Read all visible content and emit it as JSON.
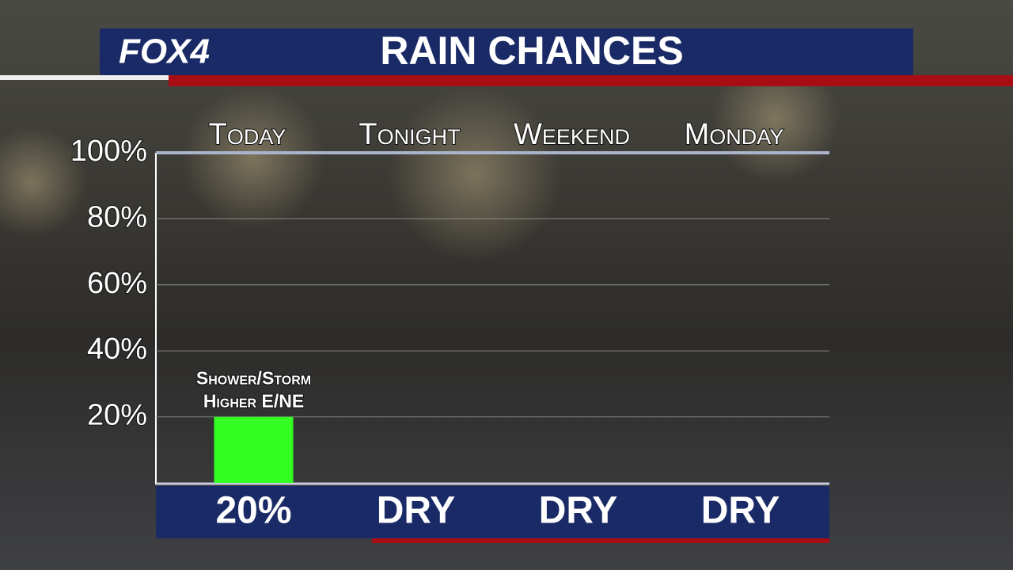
{
  "chart_data": {
    "type": "bar",
    "logo": "FOX4",
    "title": "RAIN CHANCES",
    "categories": [
      "Today",
      "Tonight",
      "Weekend",
      "Monday"
    ],
    "values": [
      20,
      0,
      0,
      0
    ],
    "value_labels": [
      "20%",
      "DRY",
      "DRY",
      "DRY"
    ],
    "color": "#33ff22",
    "annotation": [
      "Shower/Storm",
      "Higher E/NE"
    ],
    "ylim": [
      0,
      100
    ],
    "yticks": [
      {
        "value": 20,
        "label": "20%"
      },
      {
        "value": 40,
        "label": "40%"
      },
      {
        "value": 60,
        "label": "60%"
      },
      {
        "value": 80,
        "label": "80%"
      },
      {
        "value": 100,
        "label": "100%"
      }
    ],
    "grid": true
  }
}
